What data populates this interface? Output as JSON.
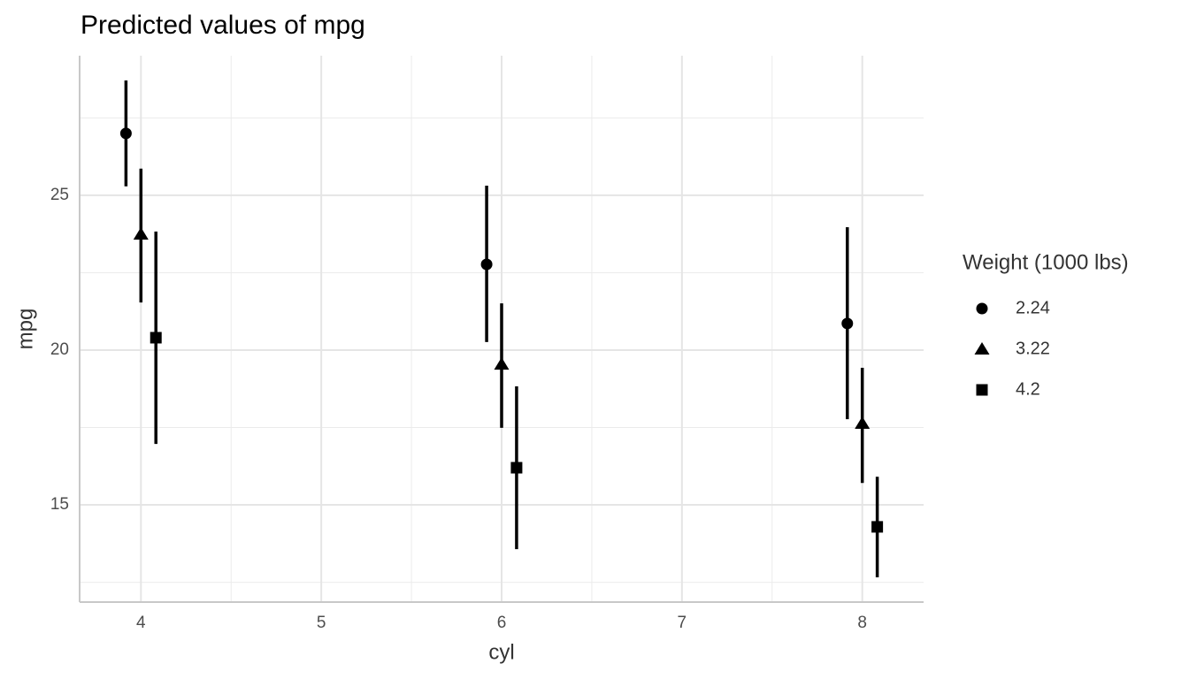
{
  "chart_data": {
    "type": "pointrange",
    "title": "Predicted values of mpg",
    "x_label": "cyl",
    "y_label": "mpg",
    "legend_title": "Weight (1000 lbs)",
    "x": [
      4,
      6,
      8
    ],
    "series": [
      {
        "name": "2.24",
        "shape": "circle",
        "color": "#000000",
        "values": [
          27.0,
          22.77,
          20.86
        ],
        "low": [
          25.29,
          20.26,
          17.77
        ],
        "high": [
          28.71,
          25.31,
          23.97
        ]
      },
      {
        "name": "3.22",
        "shape": "triangle",
        "color": "#000000",
        "values": [
          23.74,
          19.54,
          17.63
        ],
        "low": [
          21.54,
          17.49,
          15.71
        ],
        "high": [
          25.86,
          21.51,
          19.43
        ]
      },
      {
        "name": "4.2",
        "shape": "square",
        "color": "#000000",
        "values": [
          20.4,
          16.2,
          14.29
        ],
        "low": [
          16.97,
          13.57,
          12.66
        ],
        "high": [
          23.83,
          18.83,
          15.91
        ]
      }
    ],
    "xlim": [
      3.66,
      8.34
    ],
    "xticks": [
      4,
      5,
      6,
      7,
      8
    ],
    "x_minor_ticks": [
      4.5,
      5.5,
      6.5,
      7.5
    ],
    "ylim": [
      11.86,
      29.51
    ],
    "yticks": [
      15,
      20,
      25
    ],
    "y_minor_ticks": [
      12.5,
      17.5,
      22.5,
      27.5
    ],
    "grid": true,
    "legend_position": "right"
  }
}
